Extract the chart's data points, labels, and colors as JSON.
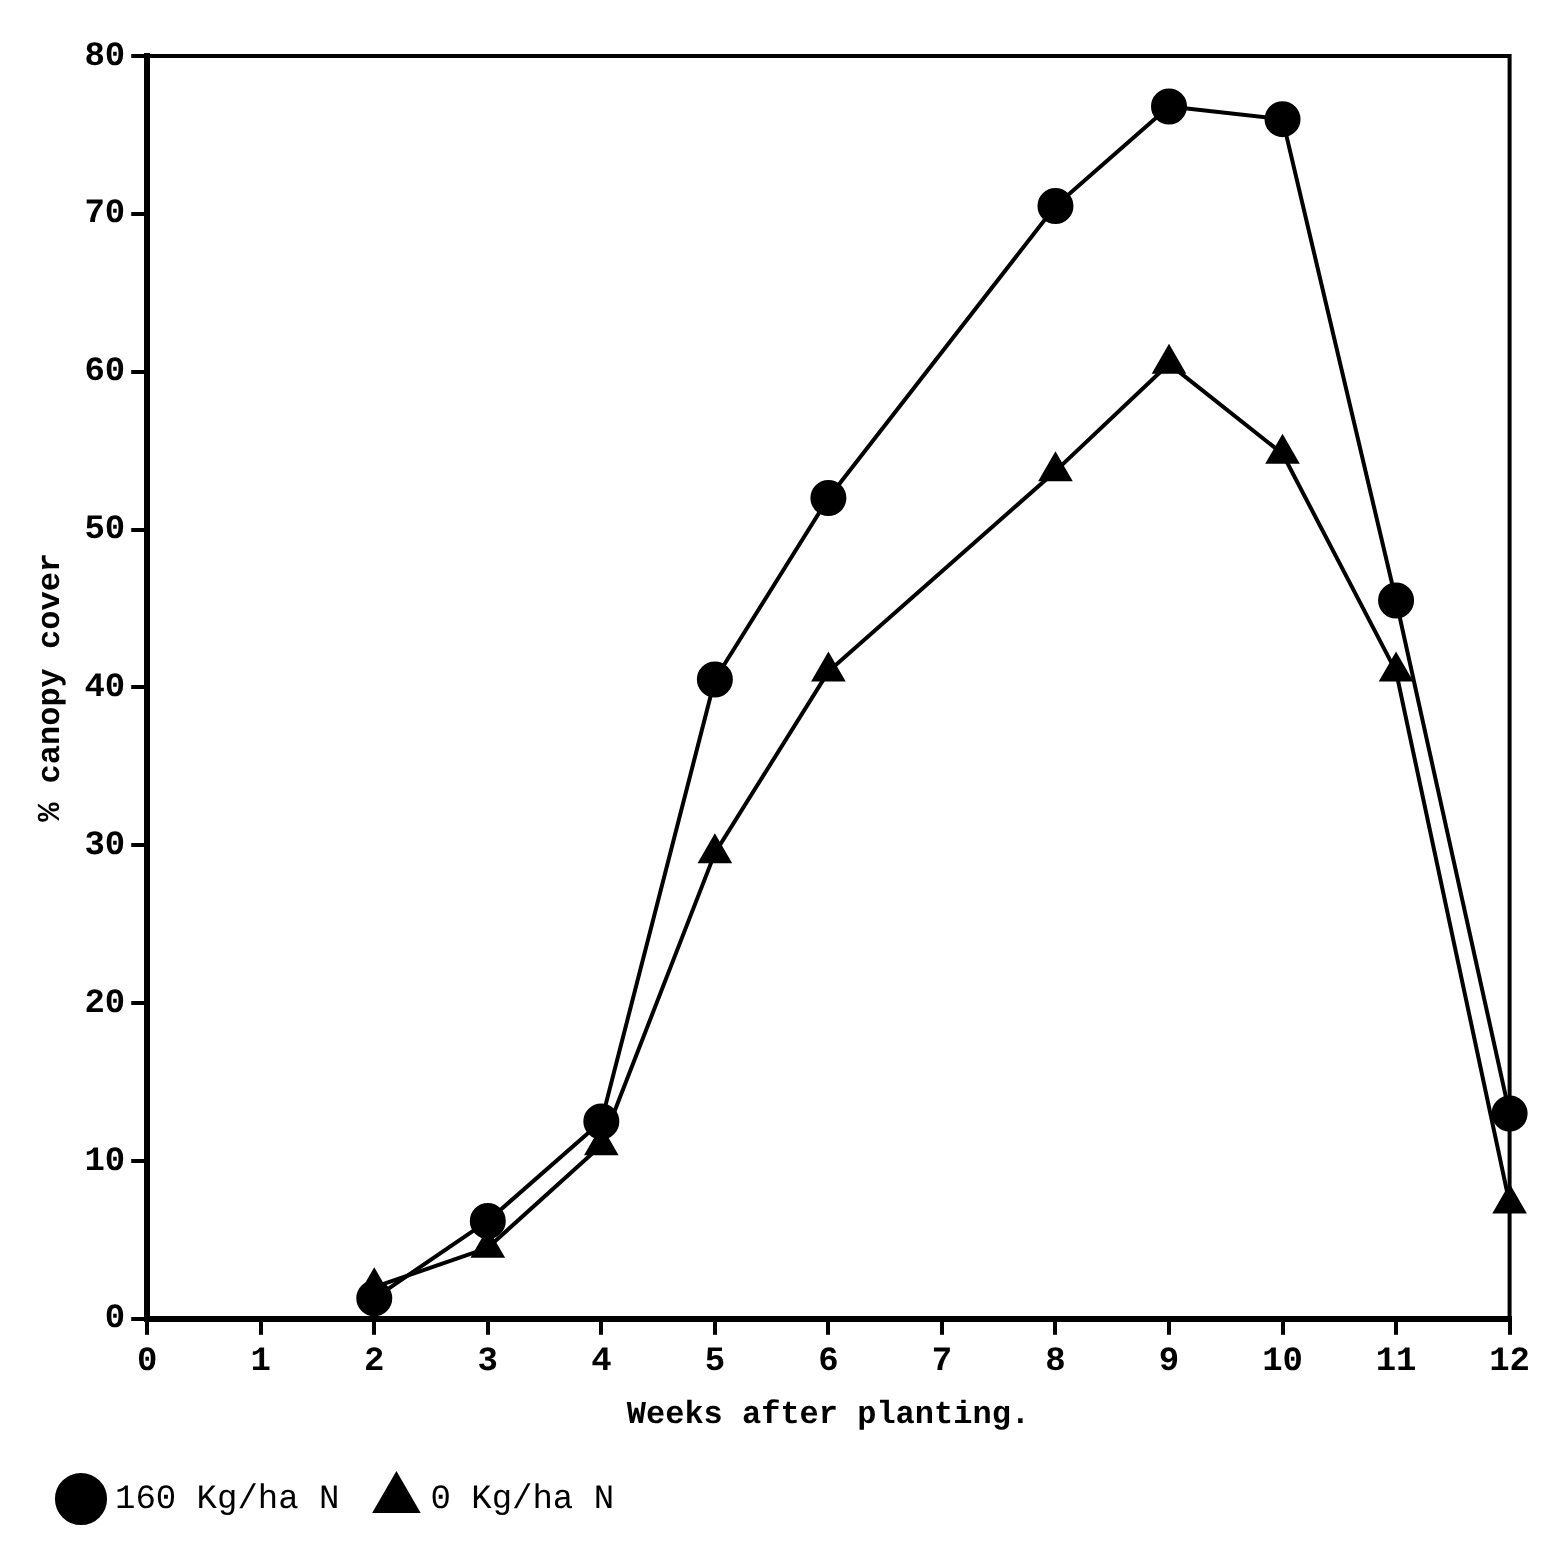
{
  "chart_data": {
    "type": "line",
    "xlabel": "Weeks after planting.",
    "ylabel": "% canopy cover",
    "x": [
      2,
      3,
      4,
      5,
      6,
      8,
      9,
      10,
      11,
      12
    ],
    "series": [
      {
        "name": "160 Kg/ha N",
        "color": "#000000",
        "marker": "circle",
        "values": [
          1.3,
          6.2,
          12.5,
          40.5,
          52,
          70.5,
          76.8,
          76,
          45.5,
          13
        ]
      },
      {
        "name": "0 Kg/ha N",
        "color": "#000000",
        "marker": "triangle",
        "values": [
          2,
          4.5,
          11,
          29.5,
          41,
          53.7,
          60.5,
          54.8,
          41,
          7.3
        ]
      }
    ],
    "xlim": [
      0,
      12
    ],
    "xticks": [
      0,
      1,
      2,
      3,
      4,
      5,
      6,
      7,
      8,
      9,
      10,
      11,
      12
    ],
    "ylim": [
      0,
      80
    ],
    "yticks": [
      0,
      10,
      20,
      30,
      40,
      50,
      60,
      70,
      80
    ],
    "legend": "bottom left",
    "line_style": "solid"
  }
}
